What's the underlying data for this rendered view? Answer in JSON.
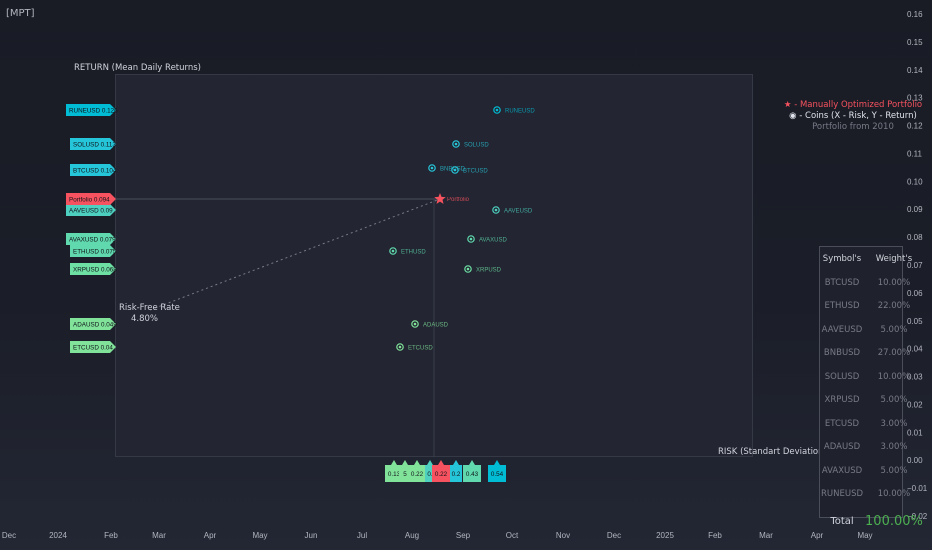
{
  "indicator_tag": "[MPT]",
  "y_axis_label": "RETURN (Mean Daily Returns)",
  "x_axis_label": "RISK (Standart Deviation)",
  "risk_free": {
    "label": "Risk-Free Rate",
    "value": "4.80%"
  },
  "legend": {
    "portfolio": "★ - Manually Optimized Portfolio",
    "coins": "◉ - Coins (X - Risk, Y - Return)",
    "period": "Portfolio from 2010"
  },
  "colors": {
    "portfolio": "#f7525f",
    "teal": "#26c6da",
    "cyan": "#00bcd4",
    "green": "#81e39a",
    "grey_text": "#787b86"
  },
  "chart_data": {
    "type": "scatter",
    "x_label": "RISK (Standart Deviation)",
    "y_label": "RETURN (Mean Daily Returns)",
    "ylim": [
      -0.02,
      0.16
    ],
    "y_ticks": [
      "0.16",
      "0.15",
      "0.14",
      "0.13",
      "0.12",
      "0.11",
      "0.10",
      "0.09",
      "0.08",
      "0.07",
      "0.06",
      "0.05",
      "0.04",
      "0.03",
      "0.02",
      "0.01",
      "0.00",
      "−0.01",
      "−0.02"
    ],
    "x_ticks": [
      "Dec",
      "2024",
      "Feb",
      "Mar",
      "Apr",
      "May",
      "Jun",
      "Jul",
      "Aug",
      "Sep",
      "Oct",
      "Nov",
      "Dec",
      "2025",
      "Feb",
      "Mar",
      "Apr",
      "May"
    ],
    "risk_free_rate": 0.048,
    "coins": [
      {
        "symbol": "RUNEUSD",
        "ret_label": "0.126",
        "color": "#00bcd4"
      },
      {
        "symbol": "SOLUSD",
        "ret_label": "0.113",
        "color": "#26c6da"
      },
      {
        "symbol": "BTCUSD",
        "ret_label": "0.104",
        "color": "#26c6da"
      },
      {
        "symbol": "BNBUSD",
        "ret_label": "",
        "color": "#26c6da"
      },
      {
        "symbol": "AAVEUSD",
        "ret_label": "0.09",
        "color": "#4dd0c0"
      },
      {
        "symbol": "AVAXUSD",
        "ret_label": "0.079",
        "color": "#5fd9ad"
      },
      {
        "symbol": "ETHUSD",
        "ret_label": "0.075",
        "color": "#5fd9ad"
      },
      {
        "symbol": "XRPUSD",
        "ret_label": "0.068",
        "color": "#6ee0a4"
      },
      {
        "symbol": "ADAUSD",
        "ret_label": "0.049",
        "color": "#81e39a"
      },
      {
        "symbol": "ETCUSD",
        "ret_label": "0.04",
        "color": "#81e39a"
      }
    ],
    "portfolio": {
      "label": "Portfolio",
      "ret_label": "0.094",
      "color": "#f7525f"
    },
    "risk_tags": [
      {
        "label": "0.13",
        "color": "#81e39a"
      },
      {
        "label": "5",
        "color": "#81e39a"
      },
      {
        "label": "0.22",
        "color": "#81e39a"
      },
      {
        "label": "0.",
        "color": "#4dd0c0"
      },
      {
        "label": "0.22",
        "color": "#f7525f"
      },
      {
        "label": "0.2",
        "color": "#26c6da"
      },
      {
        "label": "0.43",
        "color": "#5fd9ad"
      },
      {
        "label": "0.54",
        "color": "#00bcd4"
      }
    ]
  },
  "weights": {
    "headers": [
      "Symbol's",
      "Weight's"
    ],
    "rows": [
      [
        "BTCUSD",
        "10.00%"
      ],
      [
        "ETHUSD",
        "22.00%"
      ],
      [
        "AAVEUSD",
        "5.00%"
      ],
      [
        "BNBUSD",
        "27.00%"
      ],
      [
        "SOLUSD",
        "10.00%"
      ],
      [
        "XRPUSD",
        "5.00%"
      ],
      [
        "ETCUSD",
        "3.00%"
      ],
      [
        "ADAUSD",
        "3.00%"
      ],
      [
        "AVAXUSD",
        "5.00%"
      ],
      [
        "RUNEUSD",
        "10.00%"
      ]
    ],
    "total_label": "Total",
    "total_value": "100.00%"
  }
}
